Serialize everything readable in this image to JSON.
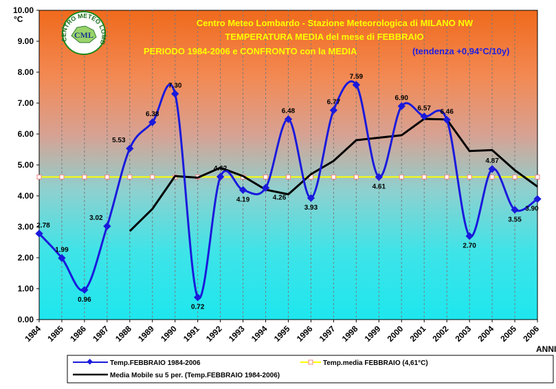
{
  "chart_data": {
    "type": "line",
    "title_lines": [
      "Centro Meteo Lombardo - Stazione Meteorologica di MILANO NW",
      "TEMPERATURA MEDIA del mese di FEBBRAIO",
      "PERIODO 1984-2006 e CONFRONTO con la MEDIA"
    ],
    "trend_note": "(tendenza +0,94°C/10y)",
    "y_unit": "°C",
    "x_unit": "ANNI",
    "ylim": [
      0,
      10
    ],
    "y_ticks": [
      "0.00",
      "1.00",
      "2.00",
      "3.00",
      "4.00",
      "5.00",
      "6.00",
      "7.00",
      "8.00",
      "9.00",
      "10.00"
    ],
    "categories": [
      "1984",
      "1985",
      "1986",
      "1987",
      "1988",
      "1989",
      "1990",
      "1991",
      "1992",
      "1993",
      "1994",
      "1995",
      "1996",
      "1997",
      "1998",
      "1999",
      "2000",
      "2001",
      "2002",
      "2003",
      "2004",
      "2005",
      "2006"
    ],
    "grid": "vertical",
    "legend_position": "bottom",
    "series": [
      {
        "name": "Temp.FEBBRAIO 1984-2006",
        "color": "#1a1adc",
        "marker": "diamond",
        "smooth": true,
        "values": [
          2.78,
          1.99,
          0.96,
          3.02,
          5.53,
          6.38,
          7.3,
          0.72,
          4.62,
          4.19,
          4.26,
          6.48,
          3.93,
          6.77,
          7.59,
          4.61,
          6.9,
          6.57,
          6.46,
          2.7,
          4.87,
          3.55,
          3.9
        ],
        "labels": [
          "2.78",
          "1.99",
          "0.96",
          "3.02",
          "5.53",
          "6.38",
          "7.30",
          "0.72",
          "4.62",
          "4.19",
          "4.26",
          "6.48",
          "3.93",
          "6.77",
          "7.59",
          "4.61",
          "6.90",
          "6.57",
          "6.46",
          "2.70",
          "4.87",
          "3.55",
          "3.90"
        ]
      },
      {
        "name": "Temp.media FEBBRAIO (4,61°C)",
        "color": "#ffff00",
        "marker": "square",
        "values": [
          4.61,
          4.61,
          4.61,
          4.61,
          4.61,
          4.61,
          4.61,
          4.61,
          4.61,
          4.61,
          4.61,
          4.61,
          4.61,
          4.61,
          4.61,
          4.61,
          4.61,
          4.61,
          4.61,
          4.61,
          4.61,
          4.61,
          4.61
        ]
      },
      {
        "name": "Media Mobile su 5 per. (Temp.FEBBRAIO 1984-2006)",
        "color": "#000000",
        "marker": "none",
        "values": [
          null,
          null,
          null,
          null,
          2.86,
          3.58,
          4.64,
          4.59,
          4.91,
          4.64,
          4.2,
          4.05,
          4.7,
          5.13,
          5.8,
          5.88,
          5.96,
          6.49,
          6.47,
          5.45,
          5.48,
          4.83,
          4.3
        ]
      }
    ]
  },
  "logo": {
    "text": "CENTRO METEO LOMBARDO",
    "initials": "CML"
  }
}
